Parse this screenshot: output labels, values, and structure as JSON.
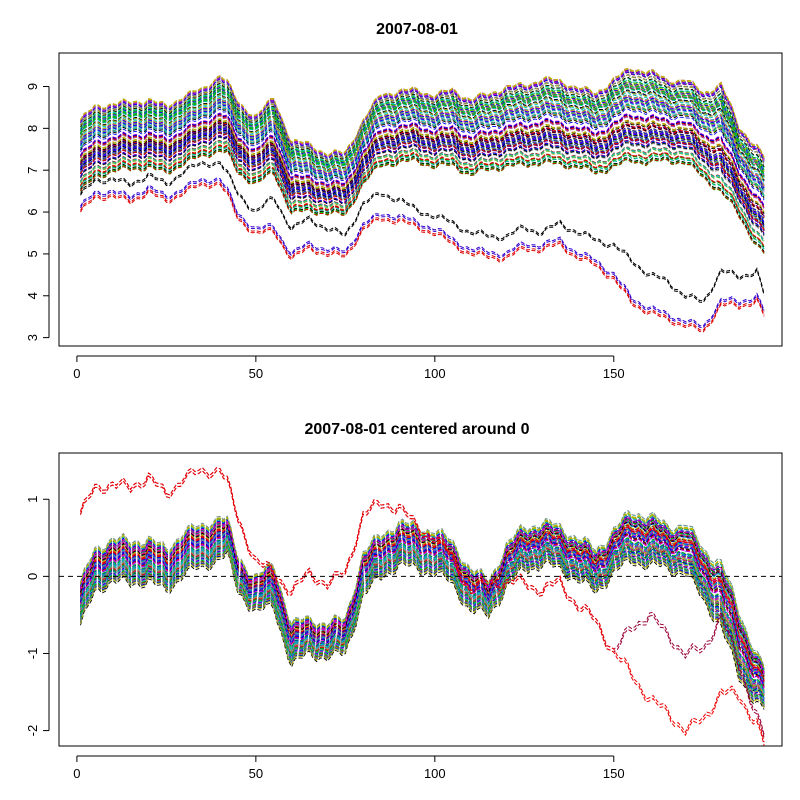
{
  "chart_data": [
    {
      "type": "line",
      "title": "2007-08-01",
      "xlabel": "",
      "ylabel": "",
      "xlim": [
        -5,
        197
      ],
      "ylim": [
        2.8,
        9.8
      ],
      "x_ticks": [
        0,
        50,
        100,
        150
      ],
      "x_tick_labels": [
        "0",
        "50",
        "100",
        "150"
      ],
      "y_ticks": [
        3,
        4,
        5,
        6,
        7,
        8,
        9
      ],
      "y_tick_labels": [
        "3",
        "4",
        "5",
        "6",
        "7",
        "8",
        "9"
      ],
      "line_style": "dashed",
      "grid": false,
      "legend": "none",
      "series_count_approx": 150,
      "x": [
        1,
        5,
        10,
        15,
        20,
        25,
        30,
        35,
        40,
        42,
        45,
        50,
        55,
        60,
        65,
        70,
        75,
        80,
        85,
        90,
        95,
        100,
        105,
        110,
        115,
        120,
        125,
        130,
        135,
        140,
        145,
        150,
        155,
        160,
        165,
        170,
        175,
        180,
        185,
        190,
        192
      ],
      "bundle": {
        "upper": [
          8.2,
          8.5,
          8.6,
          8.6,
          8.7,
          8.5,
          8.8,
          8.9,
          9.3,
          9.1,
          8.6,
          8.3,
          8.7,
          7.7,
          7.6,
          7.4,
          7.4,
          8.2,
          8.8,
          8.9,
          8.9,
          8.8,
          8.9,
          8.7,
          8.8,
          9.0,
          9.0,
          9.2,
          9.1,
          9.0,
          8.8,
          9.2,
          9.4,
          9.4,
          9.1,
          9.2,
          8.8,
          9.1,
          8.0,
          7.6,
          7.3
        ],
        "center": [
          7.4,
          7.7,
          7.8,
          7.8,
          7.9,
          7.7,
          8.0,
          8.1,
          8.4,
          8.2,
          7.8,
          7.5,
          7.8,
          6.8,
          6.8,
          6.7,
          6.6,
          7.5,
          8.0,
          8.1,
          8.1,
          8.0,
          8.0,
          7.8,
          7.9,
          8.1,
          8.1,
          8.2,
          8.1,
          8.1,
          7.9,
          8.2,
          8.4,
          8.4,
          8.2,
          8.3,
          7.9,
          7.9,
          6.9,
          6.4,
          6.2
        ],
        "lower": [
          6.5,
          6.8,
          7.0,
          7.0,
          7.1,
          6.9,
          7.2,
          7.3,
          7.5,
          7.4,
          6.9,
          6.7,
          6.9,
          6.0,
          6.0,
          6.0,
          5.9,
          6.7,
          7.1,
          7.2,
          7.2,
          7.1,
          7.1,
          6.9,
          7.0,
          7.1,
          7.1,
          7.2,
          7.1,
          7.1,
          6.9,
          7.1,
          7.2,
          7.2,
          7.2,
          7.2,
          6.8,
          6.5,
          5.9,
          5.2,
          5.0
        ]
      },
      "series": [
        {
          "color": "#000000",
          "values": [
            6.4,
            6.7,
            6.8,
            6.6,
            6.9,
            6.6,
            7.0,
            7.1,
            7.2,
            6.9,
            6.4,
            6.0,
            6.3,
            5.6,
            5.8,
            5.6,
            5.4,
            6.2,
            6.4,
            6.3,
            6.0,
            5.9,
            5.7,
            5.5,
            5.4,
            5.4,
            5.6,
            5.5,
            5.7,
            5.5,
            5.3,
            5.2,
            4.8,
            4.5,
            4.3,
            4.0,
            3.8,
            4.6,
            4.4,
            4.6,
            4.0
          ]
        },
        {
          "color": "#dd0000",
          "values": [
            6.0,
            6.3,
            6.4,
            6.2,
            6.5,
            6.2,
            6.5,
            6.6,
            6.7,
            6.4,
            5.8,
            5.5,
            5.5,
            4.9,
            5.1,
            5.0,
            4.9,
            5.6,
            5.8,
            5.8,
            5.6,
            5.5,
            5.2,
            5.0,
            4.9,
            4.9,
            5.1,
            5.1,
            5.2,
            4.9,
            4.7,
            4.4,
            3.8,
            3.6,
            3.4,
            3.3,
            3.1,
            3.8,
            3.7,
            3.9,
            3.5
          ]
        },
        {
          "color": "#3300cc",
          "values": [
            6.1,
            6.4,
            6.5,
            6.3,
            6.6,
            6.3,
            6.6,
            6.7,
            6.8,
            6.5,
            5.9,
            5.6,
            5.6,
            5.0,
            5.2,
            5.1,
            5.0,
            5.7,
            5.9,
            5.9,
            5.7,
            5.6,
            5.3,
            5.1,
            5.0,
            5.0,
            5.2,
            5.2,
            5.3,
            5.0,
            4.8,
            4.5,
            3.9,
            3.7,
            3.5,
            3.4,
            3.2,
            3.9,
            3.8,
            4.0,
            3.6
          ]
        }
      ]
    },
    {
      "type": "line",
      "title": "2007-08-01 centered around 0",
      "xlabel": "",
      "ylabel": "",
      "xlim": [
        -5,
        197
      ],
      "ylim": [
        -2.2,
        1.6
      ],
      "x_ticks": [
        0,
        50,
        100,
        150
      ],
      "x_tick_labels": [
        "0",
        "50",
        "100",
        "150"
      ],
      "y_ticks": [
        -2,
        -1,
        0,
        1
      ],
      "y_tick_labels": [
        "-2",
        "-1",
        "0",
        "1"
      ],
      "reference_line": {
        "y": 0,
        "style": "dashed",
        "color": "#000000"
      },
      "line_style": "dashed",
      "grid": false,
      "legend": "none",
      "series_count_approx": 150,
      "x": [
        1,
        5,
        10,
        15,
        20,
        25,
        30,
        35,
        40,
        42,
        45,
        50,
        55,
        60,
        65,
        70,
        75,
        80,
        85,
        90,
        95,
        100,
        105,
        110,
        115,
        120,
        125,
        130,
        135,
        140,
        145,
        150,
        155,
        160,
        165,
        170,
        175,
        180,
        185,
        190,
        192
      ],
      "bundle": {
        "upper": [
          -0.1,
          0.3,
          0.5,
          0.4,
          0.5,
          0.3,
          0.6,
          0.6,
          0.8,
          0.7,
          0.2,
          0.0,
          0.1,
          -0.6,
          -0.6,
          -0.6,
          -0.6,
          0.3,
          0.5,
          0.7,
          0.6,
          0.6,
          0.4,
          0.1,
          -0.1,
          0.4,
          0.6,
          0.7,
          0.6,
          0.5,
          0.3,
          0.6,
          0.8,
          0.8,
          0.6,
          0.7,
          0.3,
          0.2,
          -0.5,
          -1.0,
          -1.2
        ],
        "center": [
          -0.3,
          0.1,
          0.2,
          0.2,
          0.3,
          0.1,
          0.4,
          0.4,
          0.6,
          0.5,
          0.0,
          -0.2,
          -0.1,
          -0.8,
          -0.8,
          -0.8,
          -0.8,
          0.1,
          0.3,
          0.5,
          0.4,
          0.4,
          0.2,
          -0.1,
          -0.3,
          0.2,
          0.4,
          0.5,
          0.4,
          0.3,
          0.1,
          0.4,
          0.6,
          0.6,
          0.4,
          0.5,
          0.1,
          -0.1,
          -0.8,
          -1.3,
          -1.4
        ],
        "lower": [
          -0.6,
          -0.2,
          0.0,
          -0.1,
          0.0,
          -0.2,
          0.1,
          0.1,
          0.3,
          0.3,
          -0.2,
          -0.4,
          -0.4,
          -1.1,
          -1.0,
          -1.0,
          -1.0,
          -0.2,
          0.0,
          0.2,
          0.1,
          0.1,
          -0.1,
          -0.4,
          -0.5,
          -0.1,
          0.1,
          0.2,
          0.1,
          0.0,
          -0.2,
          0.1,
          0.2,
          0.2,
          0.1,
          0.1,
          -0.3,
          -0.6,
          -1.3,
          -1.6,
          -1.7
        ]
      },
      "series": [
        {
          "color": "#990033",
          "values": [
            0.8,
            1.1,
            1.2,
            1.1,
            1.3,
            1.0,
            1.3,
            1.3,
            1.4,
            1.2,
            0.7,
            0.2,
            0.0,
            -0.2,
            0.0,
            -0.1,
            0.0,
            0.8,
            0.9,
            0.9,
            0.6,
            0.5,
            0.2,
            -0.2,
            -0.1,
            -0.1,
            -0.1,
            -0.2,
            -0.1,
            -0.4,
            -0.6,
            -1.0,
            -0.7,
            -0.5,
            -0.8,
            -1.0,
            -1.0,
            -0.5,
            -1.2,
            -1.8,
            -2.1
          ]
        },
        {
          "color": "#ee0000",
          "values": [
            0.8,
            1.1,
            1.2,
            1.1,
            1.3,
            1.0,
            1.3,
            1.3,
            1.4,
            1.2,
            0.7,
            0.2,
            0.0,
            -0.2,
            0.0,
            -0.1,
            0.0,
            0.8,
            0.9,
            0.9,
            0.6,
            0.5,
            0.2,
            -0.2,
            -0.1,
            -0.1,
            -0.1,
            -0.2,
            -0.1,
            -0.4,
            -0.6,
            -1.0,
            -1.3,
            -1.6,
            -1.8,
            -2.0,
            -1.9,
            -1.5,
            -1.6,
            -1.9,
            -2.2
          ]
        }
      ]
    }
  ]
}
